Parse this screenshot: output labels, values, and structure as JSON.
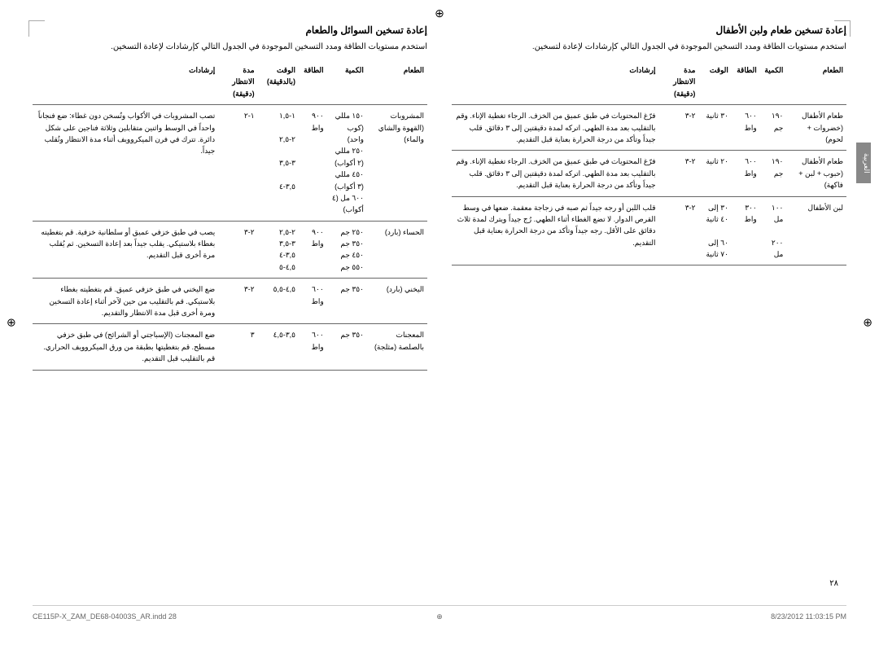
{
  "left_section": {
    "title": "إعادة تسخين طعام ولبن الأطفال",
    "description": "استخدم مستويات الطاقة ومدد التسخين الموجودة في الجدول التالي كإرشادات لإعادة لتسخين.",
    "headers": [
      "الطعام",
      "الكمية",
      "الطاقة",
      "الوقت",
      "مدة الانتظار (دقيقة)",
      "إرشادات"
    ],
    "rows": [
      {
        "food": "طعام الأطفال (خضروات + لحوم)",
        "qty": "١٩٠ جم",
        "power": "٦٠٠ واط",
        "time": "٣٠ ثانية",
        "wait": "٢-٣",
        "instructions": "فرّغ المحتويات في طبق عميق من الخزف. الرجاء تغطية الإناء. وقم بالتقليب بعد مدة الطهي. اتركه لمدة دقيقتين إلى ٣ دقائق. قلب جيداً وتأكد من درجة الحرارة بعناية قبل التقديم."
      },
      {
        "food": "طعام الأطفال (حبوب + لبن + فاكهة)",
        "qty": "١٩٠ جم",
        "power": "٦٠٠ واط",
        "time": "٢٠ ثانية",
        "wait": "٢-٣",
        "instructions": "فرّغ المحتويات في طبق عميق من الخزف. الرجاء تغطية الإناء. وقم بالتقليب بعد مدة الطهي. اتركه لمدة دقيقتين إلى ٣ دقائق. قلب جيداً وتأكد من درجة الحرارة بعناية قبل التقديم."
      },
      {
        "food": "لبن الأطفال",
        "qty": "١٠٠ مل\n\n٢٠٠ مل",
        "power": "٣٠٠ واط",
        "time": "٣٠ إلى ٤٠ ثانية\n\n٦٠ إلى ٧٠ ثانية",
        "wait": "٢-٣",
        "instructions": "قلب اللبن أو رجه جيداً ثم صبه في زجاجة معقمة. ضعها في وسط القرص الدوار. لا تضع الغطاء أثناء الطهي. رُج جيداً ويترك لمدة ثلاث دقائق على الأقل. رجه جيداً وتأكد من درجة الحرارة بعناية قبل التقديم."
      }
    ]
  },
  "right_section": {
    "title": "إعادة تسخين السوائل والطعام",
    "description": "استخدم مستويات الطاقة ومدد التسخين الموجودة في الجدول التالي كإرشادات لإعادة التسخين.",
    "headers": [
      "الطعام",
      "الكمية",
      "الطاقة",
      "الوقت (بالدقيقة)",
      "مدة الانتظار (دقيقة)",
      "إرشادات"
    ],
    "rows": [
      {
        "food": "المشروبات (القهوة والشاي والماء)",
        "qty": "١٥٠ مللي (كوب واحد)\n٢٥٠ مللي (٢ أكواب)\n٤٥٠ مللي (٣ أكواب)\n٦٠٠ مل (٤ أكواب)",
        "power": "٩٠٠ واط",
        "time": "١-١,٥\n\n٢-٢,٥\n\n٣-٣,٥\n\n٣,٥-٤",
        "wait": "١-٢",
        "instructions": "تصب المشروبات في الأكواب وتُسخن دون غطاء: ضع فنجاناً واحداً في الوسط واثنين متقابلين وثلاثة فناجين على شكل دائرة. تترك في فرن الميكروويف أثناء مدة الانتظار وتُقلب جيداً."
      },
      {
        "food": "الحساء (بارد)",
        "qty": "٢٥٠ جم\n٣٥٠ جم\n٤٥٠ جم\n٥٥٠ جم",
        "power": "٩٠٠ واط",
        "time": "٢-٢,٥\n٣-٣,٥\n٣,٥-٤\n٤,٥-٥",
        "wait": "٢-٣",
        "instructions": "يصب في طبق خزفي عميق أو سلطانية خزفية. قم بتغطيته بغطاء بلاستيكي. يقلب جيداً بعد إعادة التسخين. ثم يُقلب مرة أخرى قبل التقديم."
      },
      {
        "food": "اليخني (بارد)",
        "qty": "٣٥٠ جم",
        "power": "٦٠٠ واط",
        "time": "٤,٥-٥,٥",
        "wait": "٢-٣",
        "instructions": "ضع اليخني في طبق خزفي عميق. قم بتغطيته بغطاء بلاستيكي. قم بالتقليب من حين لآخر أثناء إعادة التسخين ومرة أخرى قبل مدة الانتظار والتقديم."
      },
      {
        "food": "المعجنات بالصلصة (مثلجة)",
        "qty": "٣٥٠ جم",
        "power": "٦٠٠ واط",
        "time": "٣,٥-٤,٥",
        "wait": "٣",
        "instructions": "ضع المعجنات (الإسباجتي أو الشرائح) في طبق خزفي مسطح. قم بتغطيتها بطبقة من ورق الميكروويف الحراري. قم بالتقليب قبل التقديم."
      }
    ]
  },
  "side_tab": "العربية",
  "page_number": "٢٨",
  "footer": {
    "left": "CE115P-X_ZAM_DE68-04003S_AR.indd   28",
    "right": "8/23/2012   11:03:15 PM"
  }
}
